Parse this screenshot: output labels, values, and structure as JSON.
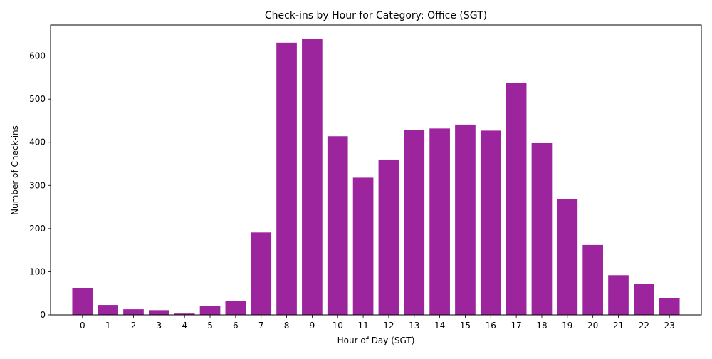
{
  "chart_data": {
    "type": "bar",
    "title": "Check-ins by Hour for Category: Office (SGT)",
    "xlabel": "Hour of Day (SGT)",
    "ylabel": "Number of Check-ins",
    "categories": [
      "0",
      "1",
      "2",
      "3",
      "4",
      "5",
      "6",
      "7",
      "8",
      "9",
      "10",
      "11",
      "12",
      "13",
      "14",
      "15",
      "16",
      "17",
      "18",
      "19",
      "20",
      "21",
      "22",
      "23"
    ],
    "values": [
      62,
      23,
      13,
      11,
      3,
      20,
      33,
      191,
      631,
      639,
      414,
      318,
      360,
      429,
      432,
      441,
      427,
      538,
      398,
      269,
      162,
      92,
      71,
      38
    ],
    "ylim": [
      0,
      672
    ],
    "yticks": [
      0,
      100,
      200,
      300,
      400,
      500,
      600
    ],
    "bar_color": "#9c249c",
    "grid": false,
    "legend": "none"
  }
}
